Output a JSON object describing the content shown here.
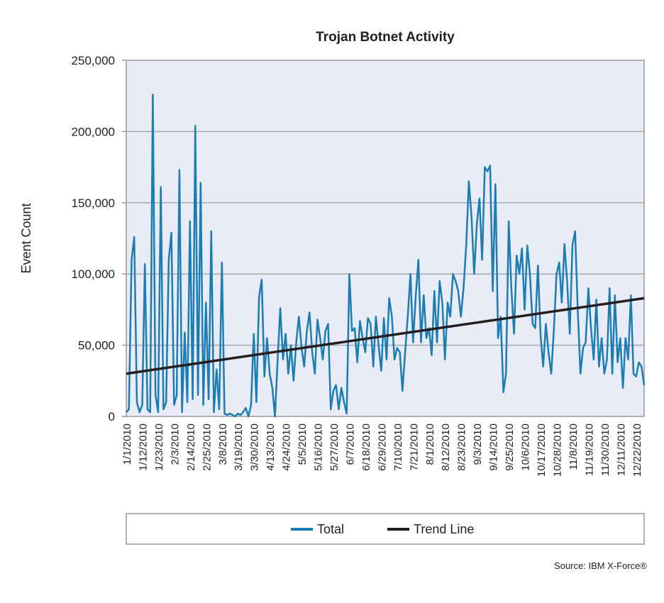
{
  "chart_data": {
    "type": "line",
    "title": "Trojan Botnet Activity",
    "y_label": "Event Count",
    "source": "Source: IBM X-Force®",
    "categories": [
      "1/1/2010",
      null,
      null,
      null,
      null,
      null,
      "1/12/2010",
      null,
      null,
      null,
      null,
      null,
      "1/23/2010",
      null,
      null,
      null,
      null,
      null,
      "2/3/2010",
      null,
      null,
      null,
      null,
      null,
      "2/14/2010",
      null,
      null,
      null,
      null,
      null,
      "2/25/2010",
      null,
      null,
      null,
      null,
      null,
      "3/8/2010",
      null,
      null,
      null,
      null,
      null,
      "3/19/2010",
      null,
      null,
      null,
      null,
      null,
      "3/30/2010",
      null,
      null,
      null,
      null,
      null,
      "4/13/2010",
      null,
      null,
      null,
      null,
      null,
      "4/24/2010",
      null,
      null,
      null,
      null,
      null,
      "5/5/2010",
      null,
      null,
      null,
      null,
      null,
      "5/16/2010",
      null,
      null,
      null,
      null,
      null,
      "5/27/2010",
      null,
      null,
      null,
      null,
      null,
      "6/7/2010",
      null,
      null,
      null,
      null,
      null,
      "6/18/2010",
      null,
      null,
      null,
      null,
      null,
      "6/29/2010",
      null,
      null,
      null,
      null,
      null,
      "7/10/2010",
      null,
      null,
      null,
      null,
      null,
      "7/21/2010",
      null,
      null,
      null,
      null,
      null,
      "8/1/2010",
      null,
      null,
      null,
      null,
      null,
      "8/12/2010",
      null,
      null,
      null,
      null,
      null,
      "8/23/2010",
      null,
      null,
      null,
      null,
      null,
      "9/3/2010",
      null,
      null,
      null,
      null,
      null,
      "9/14/2010",
      null,
      null,
      null,
      null,
      null,
      "9/25/2010",
      null,
      null,
      null,
      null,
      null,
      "10/6/2010",
      null,
      null,
      null,
      null,
      null,
      "10/17/2010",
      null,
      null,
      null,
      null,
      null,
      "10/28/2010",
      null,
      null,
      null,
      null,
      null,
      "11/8/2010",
      null,
      null,
      null,
      null,
      null,
      "11/19/2010",
      null,
      null,
      null,
      null,
      null,
      "11/30/2010",
      null,
      null,
      null,
      null,
      null,
      "12/11/2010",
      null,
      null,
      null,
      null,
      null,
      "12/22/2010",
      null,
      null,
      null
    ],
    "series": [
      {
        "name": "Total",
        "color": "#1b7db3",
        "values": [
          3000,
          5000,
          110000,
          126000,
          10000,
          3000,
          8000,
          107000,
          5000,
          3000,
          226000,
          15000,
          3000,
          161000,
          5000,
          10000,
          110000,
          129000,
          8000,
          15000,
          173000,
          3000,
          59000,
          10000,
          137000,
          12000,
          204000,
          15000,
          164000,
          8000,
          80000,
          12000,
          130000,
          3000,
          33000,
          5000,
          108000,
          2000,
          1000,
          2000,
          1000,
          0,
          2000,
          1000,
          3000,
          6000,
          0,
          8000,
          58000,
          10000,
          84000,
          96000,
          28000,
          55000,
          30000,
          20000,
          0,
          40000,
          76000,
          40000,
          58000,
          30000,
          50000,
          25000,
          52000,
          70000,
          48000,
          35000,
          60000,
          73000,
          45000,
          30000,
          68000,
          55000,
          40000,
          60000,
          65000,
          5000,
          18000,
          22000,
          5000,
          20000,
          10000,
          2000,
          100000,
          60000,
          62000,
          38000,
          67000,
          55000,
          45000,
          69000,
          65000,
          35000,
          70000,
          50000,
          32000,
          69000,
          40000,
          83000,
          70000,
          40000,
          48000,
          45000,
          18000,
          45000,
          70000,
          100000,
          52000,
          85000,
          110000,
          52000,
          85000,
          55000,
          62000,
          43000,
          88000,
          52000,
          95000,
          80000,
          40000,
          80000,
          70000,
          100000,
          95000,
          88000,
          70000,
          90000,
          120000,
          165000,
          140000,
          100000,
          135000,
          153000,
          110000,
          175000,
          172000,
          176000,
          88000,
          163000,
          55000,
          70000,
          17000,
          30000,
          137000,
          90000,
          58000,
          113000,
          100000,
          118000,
          75000,
          120000,
          100000,
          65000,
          62000,
          106000,
          57000,
          35000,
          65000,
          45000,
          30000,
          60000,
          100000,
          108000,
          80000,
          121000,
          95000,
          58000,
          120000,
          130000,
          75000,
          30000,
          48000,
          52000,
          90000,
          62000,
          40000,
          82000,
          35000,
          55000,
          30000,
          40000,
          90000,
          30000,
          85000,
          38000,
          55000,
          20000,
          55000,
          40000,
          85000,
          30000,
          28000,
          38000,
          35000,
          22000
        ]
      }
    ],
    "trend_line": {
      "name": "Trend Line",
      "color": "#231f20",
      "values": [
        30000,
        83000
      ]
    },
    "ylim": [
      0,
      250000
    ],
    "yticks": [
      0,
      {
        "value": 50000,
        "label": "50,000"
      },
      {
        "value": 100000,
        "label": "100,000"
      },
      {
        "value": 150000,
        "label": "150,000"
      },
      {
        "value": 200000,
        "label": "200,000"
      },
      {
        "value": 250000,
        "label": "250,000"
      }
    ],
    "grid": true,
    "legend": "bottom"
  }
}
